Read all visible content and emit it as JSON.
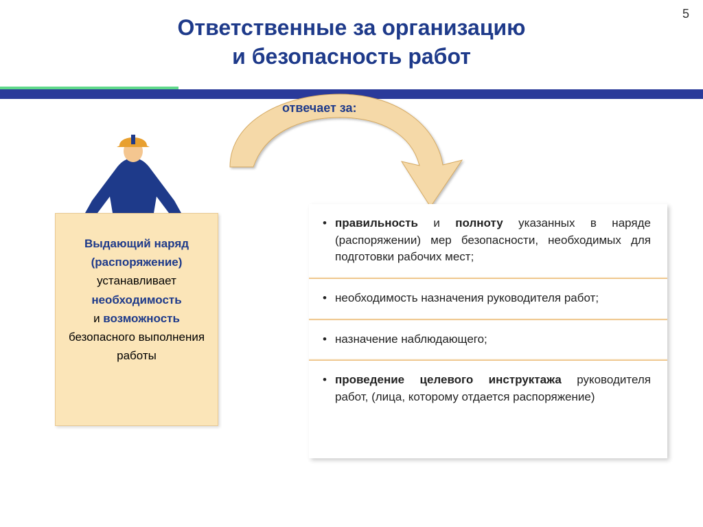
{
  "page_number": "5",
  "title_line1": "Ответственные за организацию",
  "title_line2": "и безопасность работ",
  "title_color": "#1e3a8a",
  "title_fontsize": 32,
  "green_line_color": "#5fd88a",
  "blue_line_color": "#2a3a9a",
  "arrow": {
    "fill": "#f5d9a8",
    "stroke": "#d4a860",
    "label": "отвечает за:",
    "label_color": "#1e3a8a"
  },
  "worker_colors": {
    "body": "#1e3a8a",
    "helmet": "#e8a030",
    "skin": "#f4c690"
  },
  "left_box": {
    "bg": "#fbe5b8",
    "line1_bold": "Выдающий наряд",
    "line1b_bold": "(распоряжение)",
    "line2": "устанавливает",
    "line3_bold": "необходимость",
    "line4a": "и ",
    "line4b_bold": "возможность",
    "line5": "безопасного выполнения",
    "line6": "работы",
    "bold_color": "#1e3a8a"
  },
  "right_box": {
    "sep_gradient_from": "#ffffff",
    "sep_gradient_to": "#e8b060",
    "items": [
      {
        "parts": [
          {
            "t": "правильность",
            "b": true
          },
          {
            "t": " и ",
            "b": false
          },
          {
            "t": "полноту",
            "b": true
          },
          {
            "t": " указанных в наряде (распоряжении) мер безопасности, необходимых для подготовки рабочих мест;",
            "b": false
          }
        ]
      },
      {
        "parts": [
          {
            "t": "необходимость назначения руководителя работ;",
            "b": false
          }
        ]
      },
      {
        "parts": [
          {
            "t": "назначение наблюдающего;",
            "b": false
          }
        ]
      },
      {
        "parts": [
          {
            "t": "проведение целевого инструктажа",
            "b": true
          },
          {
            "t": " руководителя работ, (лица, которому отдается распоряжение)",
            "b": false
          }
        ]
      }
    ]
  }
}
